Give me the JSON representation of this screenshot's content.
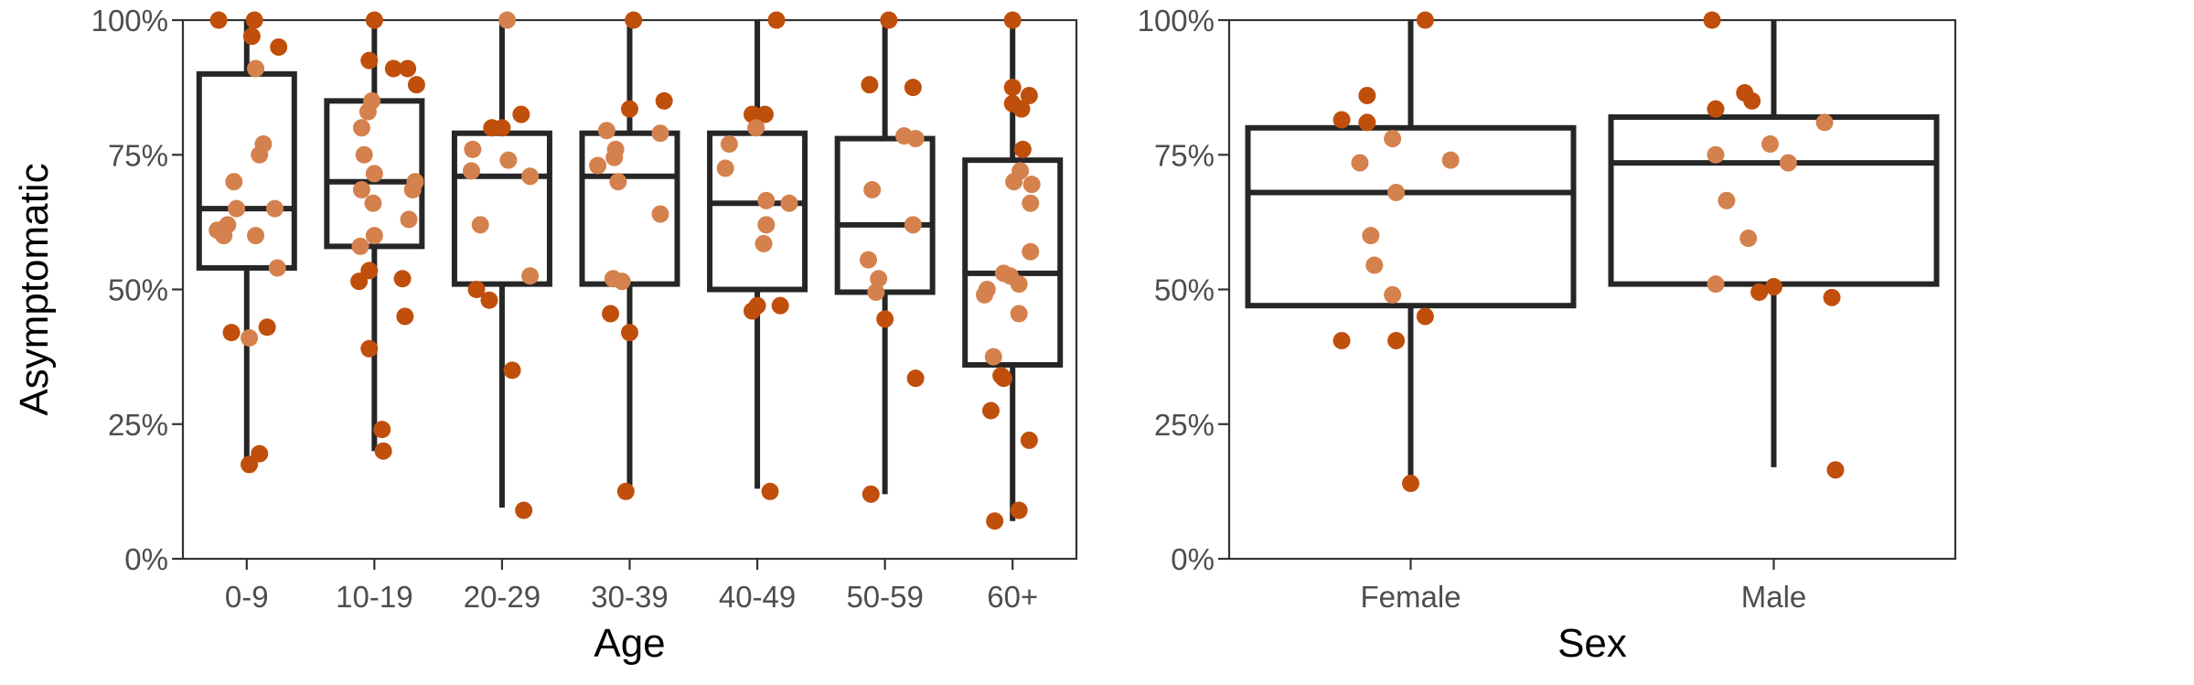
{
  "colors": {
    "dark": "#C04F0B",
    "light": "#D4814D",
    "box": "#262626"
  },
  "chart_data": [
    {
      "type": "box",
      "xlabel": "Age",
      "ylabel": "Asymptomatic",
      "ylim": [
        0,
        100
      ],
      "y_ticks": [
        "0%",
        "25%",
        "50%",
        "75%",
        "100%"
      ],
      "y_tick_values": [
        0,
        25,
        50,
        75,
        100
      ],
      "categories": [
        "0-9",
        "10-19",
        "20-29",
        "30-39",
        "40-49",
        "50-59",
        "60+"
      ],
      "boxes": [
        {
          "category": "0-9",
          "low": 18,
          "q1": 54,
          "median": 65,
          "q3": 90,
          "high": 100
        },
        {
          "category": "10-19",
          "low": 20,
          "q1": 58,
          "median": 70,
          "q3": 85,
          "high": 100
        },
        {
          "category": "20-29",
          "low": 9.5,
          "q1": 51,
          "median": 71,
          "q3": 79,
          "high": 100
        },
        {
          "category": "30-39",
          "low": 12,
          "q1": 51,
          "median": 71,
          "q3": 79,
          "high": 100
        },
        {
          "category": "40-49",
          "low": 13,
          "q1": 50,
          "median": 66,
          "q3": 79,
          "high": 100
        },
        {
          "category": "50-59",
          "low": 12,
          "q1": 49.5,
          "median": 62,
          "q3": 78,
          "high": 100
        },
        {
          "category": "60+",
          "low": 7,
          "q1": 36,
          "median": 53,
          "q3": 74,
          "high": 100
        }
      ],
      "points": [
        {
          "c": 0,
          "dx": -0.22,
          "y": 100,
          "t": "dark"
        },
        {
          "c": 0,
          "dx": 0.06,
          "y": 100,
          "t": "dark"
        },
        {
          "c": 0,
          "dx": 0.04,
          "y": 97,
          "t": "dark"
        },
        {
          "c": 0,
          "dx": 0.25,
          "y": 95,
          "t": "dark"
        },
        {
          "c": 0,
          "dx": 0.07,
          "y": 91,
          "t": "light"
        },
        {
          "c": 0,
          "dx": 0.13,
          "y": 77,
          "t": "light"
        },
        {
          "c": 0,
          "dx": 0.1,
          "y": 75,
          "t": "light"
        },
        {
          "c": 0,
          "dx": -0.1,
          "y": 70,
          "t": "light"
        },
        {
          "c": 0,
          "dx": -0.08,
          "y": 65,
          "t": "light"
        },
        {
          "c": 0,
          "dx": 0.22,
          "y": 65,
          "t": "light"
        },
        {
          "c": 0,
          "dx": -0.15,
          "y": 62,
          "t": "light"
        },
        {
          "c": 0,
          "dx": -0.23,
          "y": 61,
          "t": "light"
        },
        {
          "c": 0,
          "dx": -0.18,
          "y": 60,
          "t": "light"
        },
        {
          "c": 0,
          "dx": 0.07,
          "y": 60,
          "t": "light"
        },
        {
          "c": 0,
          "dx": 0.24,
          "y": 54,
          "t": "light"
        },
        {
          "c": 0,
          "dx": 0.16,
          "y": 43,
          "t": "dark"
        },
        {
          "c": 0,
          "dx": -0.12,
          "y": 42,
          "t": "dark"
        },
        {
          "c": 0,
          "dx": 0.02,
          "y": 41,
          "t": "light"
        },
        {
          "c": 0,
          "dx": 0.1,
          "y": 19.5,
          "t": "dark"
        },
        {
          "c": 0,
          "dx": 0.02,
          "y": 17.5,
          "t": "dark"
        },
        {
          "c": 1,
          "dx": 0.0,
          "y": 100,
          "t": "dark"
        },
        {
          "c": 1,
          "dx": -0.04,
          "y": 92.5,
          "t": "dark"
        },
        {
          "c": 1,
          "dx": 0.15,
          "y": 91,
          "t": "dark"
        },
        {
          "c": 1,
          "dx": 0.26,
          "y": 91,
          "t": "dark"
        },
        {
          "c": 1,
          "dx": 0.33,
          "y": 88,
          "t": "dark"
        },
        {
          "c": 1,
          "dx": -0.02,
          "y": 85,
          "t": "light"
        },
        {
          "c": 1,
          "dx": -0.05,
          "y": 83,
          "t": "light"
        },
        {
          "c": 1,
          "dx": -0.1,
          "y": 80,
          "t": "light"
        },
        {
          "c": 1,
          "dx": -0.08,
          "y": 75,
          "t": "light"
        },
        {
          "c": 1,
          "dx": 0.0,
          "y": 71.5,
          "t": "light"
        },
        {
          "c": 1,
          "dx": 0.32,
          "y": 70,
          "t": "light"
        },
        {
          "c": 1,
          "dx": -0.1,
          "y": 68.5,
          "t": "light"
        },
        {
          "c": 1,
          "dx": 0.3,
          "y": 68.5,
          "t": "light"
        },
        {
          "c": 1,
          "dx": -0.01,
          "y": 66,
          "t": "light"
        },
        {
          "c": 1,
          "dx": 0.27,
          "y": 63,
          "t": "light"
        },
        {
          "c": 1,
          "dx": 0.0,
          "y": 60,
          "t": "light"
        },
        {
          "c": 1,
          "dx": -0.11,
          "y": 58,
          "t": "light"
        },
        {
          "c": 1,
          "dx": -0.04,
          "y": 53.5,
          "t": "dark"
        },
        {
          "c": 1,
          "dx": 0.22,
          "y": 52,
          "t": "dark"
        },
        {
          "c": 1,
          "dx": -0.12,
          "y": 51.5,
          "t": "dark"
        },
        {
          "c": 1,
          "dx": 0.24,
          "y": 45,
          "t": "dark"
        },
        {
          "c": 1,
          "dx": -0.04,
          "y": 39,
          "t": "dark"
        },
        {
          "c": 1,
          "dx": 0.06,
          "y": 24,
          "t": "dark"
        },
        {
          "c": 1,
          "dx": 0.07,
          "y": 20,
          "t": "dark"
        },
        {
          "c": 2,
          "dx": 0.04,
          "y": 100,
          "t": "light"
        },
        {
          "c": 2,
          "dx": 0.15,
          "y": 82.5,
          "t": "dark"
        },
        {
          "c": 2,
          "dx": -0.08,
          "y": 80,
          "t": "dark"
        },
        {
          "c": 2,
          "dx": 0.0,
          "y": 80,
          "t": "dark"
        },
        {
          "c": 2,
          "dx": -0.23,
          "y": 76,
          "t": "light"
        },
        {
          "c": 2,
          "dx": 0.05,
          "y": 74,
          "t": "light"
        },
        {
          "c": 2,
          "dx": -0.24,
          "y": 72,
          "t": "light"
        },
        {
          "c": 2,
          "dx": 0.22,
          "y": 71,
          "t": "light"
        },
        {
          "c": 2,
          "dx": -0.17,
          "y": 62,
          "t": "light"
        },
        {
          "c": 2,
          "dx": 0.22,
          "y": 52.5,
          "t": "light"
        },
        {
          "c": 2,
          "dx": -0.2,
          "y": 50,
          "t": "dark"
        },
        {
          "c": 2,
          "dx": -0.1,
          "y": 48,
          "t": "dark"
        },
        {
          "c": 2,
          "dx": 0.08,
          "y": 35,
          "t": "dark"
        },
        {
          "c": 2,
          "dx": 0.17,
          "y": 9,
          "t": "dark"
        },
        {
          "c": 3,
          "dx": 0.03,
          "y": 100,
          "t": "dark"
        },
        {
          "c": 3,
          "dx": 0.27,
          "y": 85,
          "t": "dark"
        },
        {
          "c": 3,
          "dx": 0.0,
          "y": 83.5,
          "t": "dark"
        },
        {
          "c": 3,
          "dx": -0.18,
          "y": 79.5,
          "t": "light"
        },
        {
          "c": 3,
          "dx": 0.24,
          "y": 79,
          "t": "light"
        },
        {
          "c": 3,
          "dx": -0.11,
          "y": 76,
          "t": "light"
        },
        {
          "c": 3,
          "dx": -0.12,
          "y": 74.5,
          "t": "light"
        },
        {
          "c": 3,
          "dx": -0.25,
          "y": 73,
          "t": "light"
        },
        {
          "c": 3,
          "dx": -0.09,
          "y": 70,
          "t": "light"
        },
        {
          "c": 3,
          "dx": 0.24,
          "y": 64,
          "t": "light"
        },
        {
          "c": 3,
          "dx": -0.13,
          "y": 52,
          "t": "light"
        },
        {
          "c": 3,
          "dx": -0.06,
          "y": 51.5,
          "t": "light"
        },
        {
          "c": 3,
          "dx": -0.15,
          "y": 45.5,
          "t": "dark"
        },
        {
          "c": 3,
          "dx": 0.0,
          "y": 42,
          "t": "dark"
        },
        {
          "c": 3,
          "dx": -0.03,
          "y": 12.5,
          "t": "dark"
        },
        {
          "c": 4,
          "dx": 0.15,
          "y": 100,
          "t": "dark"
        },
        {
          "c": 4,
          "dx": -0.04,
          "y": 82.5,
          "t": "dark"
        },
        {
          "c": 4,
          "dx": 0.06,
          "y": 82.5,
          "t": "dark"
        },
        {
          "c": 4,
          "dx": -0.01,
          "y": 80,
          "t": "light"
        },
        {
          "c": 4,
          "dx": -0.22,
          "y": 77,
          "t": "light"
        },
        {
          "c": 4,
          "dx": -0.25,
          "y": 72.5,
          "t": "light"
        },
        {
          "c": 4,
          "dx": 0.07,
          "y": 66.5,
          "t": "light"
        },
        {
          "c": 4,
          "dx": 0.25,
          "y": 66,
          "t": "light"
        },
        {
          "c": 4,
          "dx": 0.07,
          "y": 62,
          "t": "light"
        },
        {
          "c": 4,
          "dx": 0.05,
          "y": 58.5,
          "t": "light"
        },
        {
          "c": 4,
          "dx": 0.0,
          "y": 47,
          "t": "dark"
        },
        {
          "c": 4,
          "dx": 0.18,
          "y": 47,
          "t": "dark"
        },
        {
          "c": 4,
          "dx": -0.04,
          "y": 46,
          "t": "dark"
        },
        {
          "c": 4,
          "dx": 0.1,
          "y": 12.5,
          "t": "dark"
        },
        {
          "c": 5,
          "dx": 0.03,
          "y": 100,
          "t": "dark"
        },
        {
          "c": 5,
          "dx": -0.12,
          "y": 88,
          "t": "dark"
        },
        {
          "c": 5,
          "dx": 0.22,
          "y": 87.5,
          "t": "dark"
        },
        {
          "c": 5,
          "dx": 0.15,
          "y": 78.5,
          "t": "light"
        },
        {
          "c": 5,
          "dx": 0.24,
          "y": 78,
          "t": "light"
        },
        {
          "c": 5,
          "dx": -0.1,
          "y": 68.5,
          "t": "light"
        },
        {
          "c": 5,
          "dx": 0.22,
          "y": 62,
          "t": "light"
        },
        {
          "c": 5,
          "dx": -0.13,
          "y": 55.5,
          "t": "light"
        },
        {
          "c": 5,
          "dx": -0.05,
          "y": 52,
          "t": "light"
        },
        {
          "c": 5,
          "dx": -0.07,
          "y": 49.5,
          "t": "light"
        },
        {
          "c": 5,
          "dx": 0.0,
          "y": 44.5,
          "t": "dark"
        },
        {
          "c": 5,
          "dx": 0.24,
          "y": 33.5,
          "t": "dark"
        },
        {
          "c": 5,
          "dx": -0.11,
          "y": 12,
          "t": "dark"
        },
        {
          "c": 6,
          "dx": 0.0,
          "y": 100,
          "t": "dark"
        },
        {
          "c": 6,
          "dx": 0.0,
          "y": 87.5,
          "t": "dark"
        },
        {
          "c": 6,
          "dx": 0.13,
          "y": 86,
          "t": "dark"
        },
        {
          "c": 6,
          "dx": 0.0,
          "y": 84.5,
          "t": "dark"
        },
        {
          "c": 6,
          "dx": 0.07,
          "y": 83.5,
          "t": "dark"
        },
        {
          "c": 6,
          "dx": 0.08,
          "y": 76,
          "t": "dark"
        },
        {
          "c": 6,
          "dx": 0.06,
          "y": 72,
          "t": "light"
        },
        {
          "c": 6,
          "dx": 0.01,
          "y": 70,
          "t": "light"
        },
        {
          "c": 6,
          "dx": 0.15,
          "y": 69.5,
          "t": "light"
        },
        {
          "c": 6,
          "dx": 0.14,
          "y": 66,
          "t": "light"
        },
        {
          "c": 6,
          "dx": 0.14,
          "y": 57,
          "t": "light"
        },
        {
          "c": 6,
          "dx": -0.07,
          "y": 53,
          "t": "light"
        },
        {
          "c": 6,
          "dx": -0.02,
          "y": 52.5,
          "t": "light"
        },
        {
          "c": 6,
          "dx": 0.05,
          "y": 51,
          "t": "light"
        },
        {
          "c": 6,
          "dx": -0.2,
          "y": 50,
          "t": "light"
        },
        {
          "c": 6,
          "dx": -0.22,
          "y": 49,
          "t": "light"
        },
        {
          "c": 6,
          "dx": 0.05,
          "y": 45.5,
          "t": "light"
        },
        {
          "c": 6,
          "dx": -0.15,
          "y": 37.5,
          "t": "light"
        },
        {
          "c": 6,
          "dx": -0.09,
          "y": 34,
          "t": "dark"
        },
        {
          "c": 6,
          "dx": -0.07,
          "y": 33.5,
          "t": "dark"
        },
        {
          "c": 6,
          "dx": -0.17,
          "y": 27.5,
          "t": "dark"
        },
        {
          "c": 6,
          "dx": 0.13,
          "y": 22,
          "t": "dark"
        },
        {
          "c": 6,
          "dx": 0.05,
          "y": 9,
          "t": "dark"
        },
        {
          "c": 6,
          "dx": -0.14,
          "y": 7,
          "t": "dark"
        }
      ]
    },
    {
      "type": "box",
      "xlabel": "Sex",
      "ylabel": "",
      "ylim": [
        0,
        100
      ],
      "y_ticks": [
        "0%",
        "25%",
        "50%",
        "75%",
        "100%"
      ],
      "y_tick_values": [
        0,
        25,
        50,
        75,
        100
      ],
      "categories": [
        "Female",
        "Male"
      ],
      "boxes": [
        {
          "category": "Female",
          "low": 14,
          "q1": 47,
          "median": 68,
          "q3": 80,
          "high": 100
        },
        {
          "category": "Male",
          "low": 17,
          "q1": 51,
          "median": 73.5,
          "q3": 82,
          "high": 100
        }
      ],
      "points": [
        {
          "c": 0,
          "dx": 0.04,
          "y": 100,
          "t": "dark"
        },
        {
          "c": 0,
          "dx": -0.12,
          "y": 86,
          "t": "dark"
        },
        {
          "c": 0,
          "dx": -0.19,
          "y": 81.5,
          "t": "dark"
        },
        {
          "c": 0,
          "dx": -0.12,
          "y": 81,
          "t": "dark"
        },
        {
          "c": 0,
          "dx": -0.05,
          "y": 78,
          "t": "light"
        },
        {
          "c": 0,
          "dx": 0.11,
          "y": 74,
          "t": "light"
        },
        {
          "c": 0,
          "dx": -0.14,
          "y": 73.5,
          "t": "light"
        },
        {
          "c": 0,
          "dx": -0.04,
          "y": 68,
          "t": "light"
        },
        {
          "c": 0,
          "dx": -0.11,
          "y": 60,
          "t": "light"
        },
        {
          "c": 0,
          "dx": -0.1,
          "y": 54.5,
          "t": "light"
        },
        {
          "c": 0,
          "dx": -0.05,
          "y": 49,
          "t": "light"
        },
        {
          "c": 0,
          "dx": 0.04,
          "y": 45,
          "t": "dark"
        },
        {
          "c": 0,
          "dx": -0.19,
          "y": 40.5,
          "t": "dark"
        },
        {
          "c": 0,
          "dx": -0.04,
          "y": 40.5,
          "t": "dark"
        },
        {
          "c": 0,
          "dx": 0.0,
          "y": 14,
          "t": "dark"
        },
        {
          "c": 1,
          "dx": -0.17,
          "y": 100,
          "t": "dark"
        },
        {
          "c": 1,
          "dx": -0.08,
          "y": 86.5,
          "t": "dark"
        },
        {
          "c": 1,
          "dx": -0.06,
          "y": 85,
          "t": "dark"
        },
        {
          "c": 1,
          "dx": -0.16,
          "y": 83.5,
          "t": "dark"
        },
        {
          "c": 1,
          "dx": 0.14,
          "y": 81,
          "t": "light"
        },
        {
          "c": 1,
          "dx": -0.01,
          "y": 77,
          "t": "light"
        },
        {
          "c": 1,
          "dx": -0.16,
          "y": 75,
          "t": "light"
        },
        {
          "c": 1,
          "dx": 0.04,
          "y": 73.5,
          "t": "light"
        },
        {
          "c": 1,
          "dx": -0.13,
          "y": 66.5,
          "t": "light"
        },
        {
          "c": 1,
          "dx": -0.07,
          "y": 59.5,
          "t": "light"
        },
        {
          "c": 1,
          "dx": -0.16,
          "y": 51,
          "t": "light"
        },
        {
          "c": 1,
          "dx": 0.0,
          "y": 50.5,
          "t": "dark"
        },
        {
          "c": 1,
          "dx": -0.04,
          "y": 49.5,
          "t": "dark"
        },
        {
          "c": 1,
          "dx": 0.16,
          "y": 48.5,
          "t": "dark"
        },
        {
          "c": 1,
          "dx": 0.17,
          "y": 16.5,
          "t": "dark"
        }
      ]
    }
  ]
}
